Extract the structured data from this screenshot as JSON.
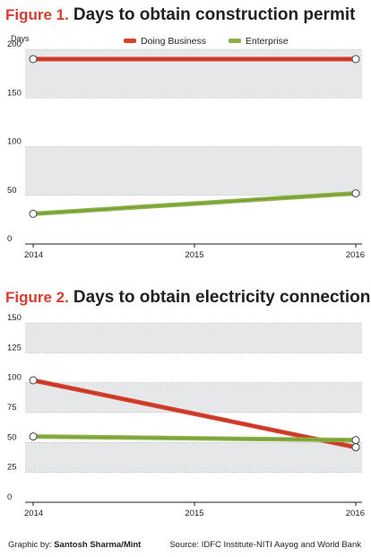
{
  "figures": [
    {
      "label": "Figure 1.",
      "title": "Days to obtain construction permit"
    },
    {
      "label": "Figure 2.",
      "title": "Days to obtain electricity connection"
    }
  ],
  "legend": [
    {
      "name": "Doing Business",
      "color": "#d9412f"
    },
    {
      "name": "Enterprise",
      "color": "#8ab144"
    }
  ],
  "y_unit_label": "Days",
  "footer": {
    "credit_prefix": "Graphic by:",
    "credit_name": "Santosh Sharma/Mint",
    "source": "Source: IDFC Institute-NITI Aayog and World Bank"
  },
  "colors": {
    "band": "#e6e7e8",
    "title_accent": "#d43d2f",
    "doing_business": "#d9412f",
    "enterprise": "#8ab144"
  },
  "chart_data": [
    {
      "type": "line",
      "title": "Days to obtain construction permit",
      "ylabel": "Days",
      "x": [
        2014,
        2015,
        2016
      ],
      "xticks": [
        "2014",
        "2015",
        "2016"
      ],
      "ylim": [
        0,
        200
      ],
      "yticks": [
        0,
        50,
        100,
        150,
        200
      ],
      "grid": "alternating horizontal bands",
      "legend": "top-center",
      "series": [
        {
          "name": "Doing Business",
          "x": [
            2014,
            2016
          ],
          "values": [
            190,
            190
          ]
        },
        {
          "name": "Enterprise",
          "x": [
            2014,
            2016
          ],
          "values": [
            31,
            52
          ]
        }
      ]
    },
    {
      "type": "line",
      "title": "Days to obtain electricity connection",
      "x": [
        2014,
        2015,
        2016
      ],
      "xticks": [
        "2014",
        "2015",
        "2016"
      ],
      "ylim": [
        0,
        150
      ],
      "yticks": [
        0,
        25,
        50,
        75,
        100,
        125,
        150
      ],
      "grid": "alternating horizontal bands",
      "series": [
        {
          "name": "Doing Business",
          "x": [
            2014,
            2016
          ],
          "values": [
            102,
            46
          ]
        },
        {
          "name": "Enterprise",
          "x": [
            2014,
            2016
          ],
          "values": [
            55,
            52
          ]
        }
      ]
    }
  ]
}
